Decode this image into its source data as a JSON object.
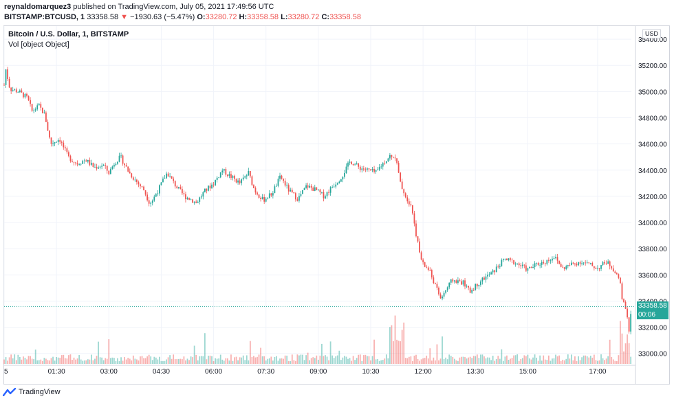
{
  "header": {
    "author": "reynaldomarquez3",
    "published_text": "published on TradingView.com, July 05, 2021 17:49:56 UTC",
    "symbol": "BITSTAMP:BTCUSD, 1",
    "last": "33358.58",
    "change_arrow": "▼",
    "change": "−1930.63 (−5.47%)",
    "o_label": "O:",
    "o_value": "33280.72",
    "h_label": "H:",
    "h_value": "33358.58",
    "l_label": "L:",
    "l_value": "33280.72",
    "c_label": "C:",
    "c_value": "33358.58"
  },
  "legend": {
    "title": "Bitcoin / U.S. Dollar, 1, BITSTAMP",
    "vol": "Vol [object Object]"
  },
  "currency": "USD",
  "price_tag": {
    "price": "33358.58",
    "countdown": "00:06"
  },
  "footer": {
    "brand": "TradingView"
  },
  "colors": {
    "up": "#26a69a",
    "down": "#ef5350",
    "grid": "#f0f3fa"
  },
  "chart_data": {
    "type": "candlestick",
    "title": "Bitcoin / U.S. Dollar, 1, BITSTAMP",
    "xlabel": "",
    "ylabel": "",
    "ylim": [
      32920,
      35500
    ],
    "y_ticks": [
      33000,
      33200,
      33400,
      33600,
      33800,
      34000,
      34200,
      34400,
      34600,
      34800,
      35000,
      35200,
      35400
    ],
    "y_tick_labels": [
      "33000.00",
      "33200.00",
      "33400.00",
      "33600.00",
      "33800.00",
      "34000.00",
      "34200.00",
      "34400.00",
      "34600.00",
      "34800.00",
      "35000.00",
      "35200.00",
      "35400.00"
    ],
    "x_tick_labels": [
      "5",
      "01:30",
      "03:00",
      "04:30",
      "06:00",
      "07:30",
      "09:00",
      "10:30",
      "12:00",
      "13:30",
      "15:00",
      "17:00"
    ],
    "x_tick_minutes": [
      0,
      90,
      180,
      270,
      360,
      450,
      540,
      630,
      720,
      810,
      900,
      1020
    ],
    "x_range_minutes": [
      0,
      1078
    ],
    "last_price": 33358.58,
    "grid": true,
    "price_path_minutes": [
      0,
      2,
      10,
      25,
      40,
      48,
      60,
      70,
      80,
      95,
      110,
      125,
      140,
      155,
      170,
      180,
      190,
      200,
      215,
      230,
      240,
      250,
      255,
      265,
      280,
      295,
      310,
      320,
      330,
      345,
      360,
      375,
      390,
      405,
      420,
      430,
      445,
      460,
      475,
      490,
      505,
      520,
      535,
      550,
      565,
      580,
      595,
      610,
      625,
      640,
      645,
      655,
      665,
      672,
      676,
      680,
      690,
      700,
      710,
      715,
      720,
      730,
      750,
      770,
      790,
      800,
      820,
      840,
      860,
      880,
      900,
      915,
      930,
      945,
      960,
      975,
      990,
      1005,
      1020,
      1035,
      1045,
      1052,
      1058,
      1062,
      1066,
      1070,
      1074,
      1078
    ],
    "price_path_values": [
      35050,
      35190,
      35020,
      35000,
      34950,
      34850,
      34890,
      34820,
      34600,
      34640,
      34500,
      34450,
      34480,
      34420,
      34440,
      34380,
      34460,
      34500,
      34380,
      34300,
      34250,
      34150,
      34170,
      34250,
      34380,
      34280,
      34200,
      34180,
      34150,
      34240,
      34300,
      34400,
      34350,
      34300,
      34380,
      34250,
      34170,
      34220,
      34350,
      34240,
      34180,
      34280,
      34250,
      34200,
      34280,
      34350,
      34470,
      34420,
      34400,
      34380,
      34420,
      34470,
      34520,
      34500,
      34430,
      34310,
      34200,
      34130,
      33860,
      33750,
      33680,
      33640,
      33420,
      33560,
      33540,
      33470,
      33560,
      33620,
      33720,
      33690,
      33640,
      33680,
      33700,
      33740,
      33650,
      33680,
      33700,
      33680,
      33650,
      33700,
      33660,
      33600,
      33560,
      33420,
      33370,
      33290,
      33180,
      33358
    ]
  }
}
